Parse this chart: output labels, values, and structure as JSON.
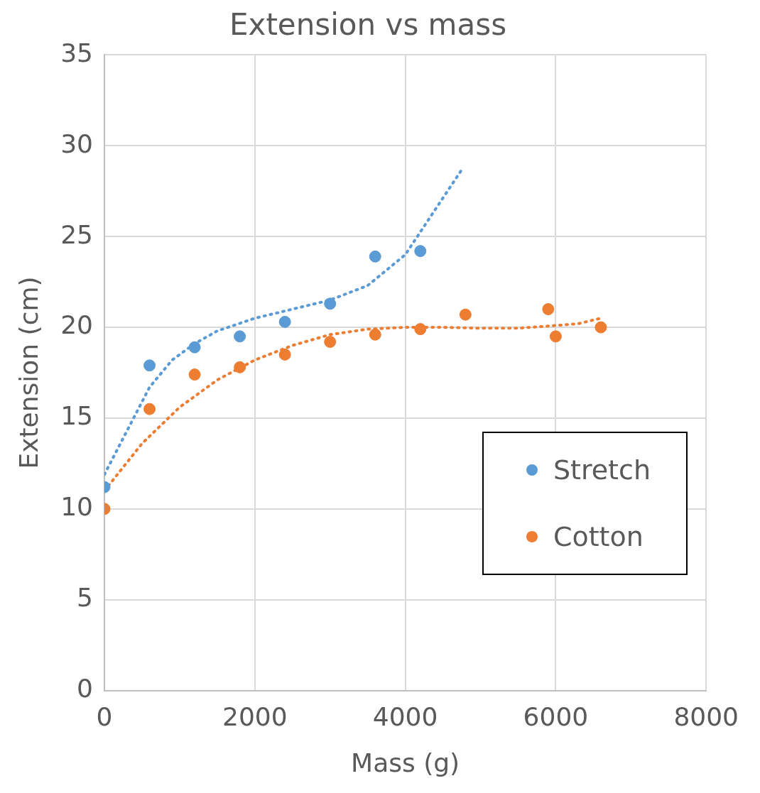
{
  "chart_data": {
    "type": "scatter",
    "title": "Extension vs mass",
    "xlabel": "Mass (g)",
    "ylabel": "Extension (cm)",
    "xlim": [
      0,
      8000
    ],
    "xticks": [
      0,
      2000,
      4000,
      6000,
      8000
    ],
    "ylim": [
      0,
      35
    ],
    "yticks": [
      0,
      5,
      10,
      15,
      20,
      25,
      30,
      35
    ],
    "grid": true,
    "legend": "right",
    "marker": "circle",
    "series": [
      {
        "name": "Stretch",
        "color": "#5b9bd5",
        "x": [
          0,
          600,
          1200,
          1800,
          2400,
          3000,
          3600,
          4200
        ],
        "values": [
          11.2,
          17.9,
          18.9,
          19.5,
          20.3,
          21.3,
          23.9,
          24.2
        ]
      },
      {
        "name": "Cotton",
        "color": "#ed7d31",
        "x": [
          0,
          600,
          1200,
          1800,
          2400,
          3000,
          3600,
          4200,
          4800,
          5900,
          6000,
          6600
        ],
        "values": [
          10.0,
          15.5,
          17.4,
          17.8,
          18.5,
          19.2,
          19.6,
          19.9,
          20.7,
          21.0,
          19.5,
          20.0
        ]
      },
      {
        "type": "line",
        "color": "#5b9bd5",
        "line_style": "dotted",
        "marker": "none",
        "x": [
          0,
          300,
          600,
          900,
          1200,
          1500,
          2000,
          2500,
          3000,
          3500,
          4000,
          4400,
          4770
        ],
        "values": [
          11.9,
          14.3,
          16.7,
          18.2,
          19.1,
          19.8,
          20.5,
          21.0,
          21.5,
          22.3,
          24.0,
          26.5,
          28.8
        ]
      },
      {
        "type": "line",
        "color": "#ed7d31",
        "line_style": "dotted",
        "marker": "none",
        "x": [
          0,
          500,
          1000,
          1500,
          2000,
          2500,
          3000,
          3500,
          4000,
          4500,
          5000,
          5500,
          6000,
          6300,
          6600
        ],
        "values": [
          11.0,
          13.6,
          15.6,
          17.1,
          18.2,
          19.0,
          19.6,
          19.9,
          20.0,
          20.0,
          19.95,
          19.95,
          20.1,
          20.2,
          20.5
        ]
      }
    ]
  }
}
